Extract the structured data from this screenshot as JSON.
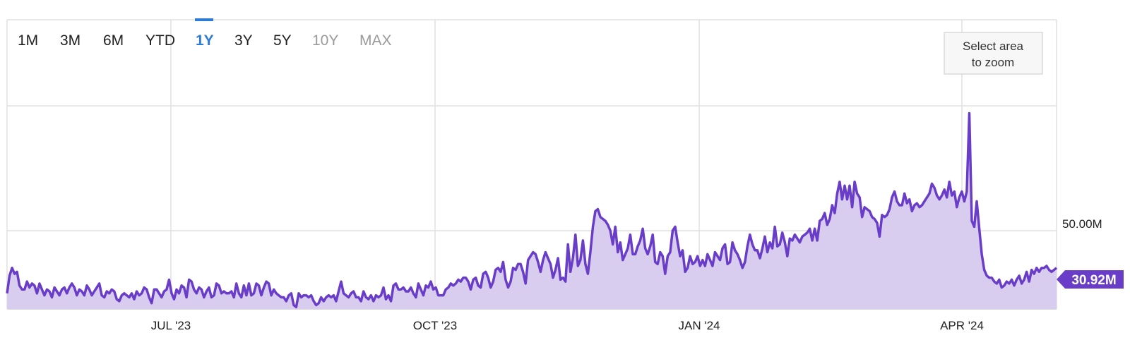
{
  "range_buttons": [
    {
      "label": "1M",
      "state": "normal"
    },
    {
      "label": "3M",
      "state": "normal"
    },
    {
      "label": "6M",
      "state": "normal"
    },
    {
      "label": "YTD",
      "state": "normal"
    },
    {
      "label": "1Y",
      "state": "active"
    },
    {
      "label": "3Y",
      "state": "normal"
    },
    {
      "label": "5Y",
      "state": "normal"
    },
    {
      "label": "10Y",
      "state": "disabled"
    },
    {
      "label": "MAX",
      "state": "disabled"
    }
  ],
  "zoom_hint": {
    "line1": "Select area",
    "line2": "to zoom"
  },
  "colors": {
    "line": "#6a3dc9",
    "area": "#d8cdef",
    "active": "#2e7bd6",
    "disabled": "#9a9a9a",
    "text": "#1f1f1f",
    "grid": "#e0e0e0",
    "badge": "#6a3dc9"
  },
  "chart_data": {
    "type": "area",
    "x_tick_labels": [
      "JUL '23",
      "OCT '23",
      "JAN '24",
      "APR '24"
    ],
    "y_tick_labels": [
      "50.00M"
    ],
    "last_value_label": "30.92M",
    "x_range": [
      "2023-05-09",
      "2024-05-08"
    ],
    "y_range_approx": [
      10,
      120
    ],
    "grid": true,
    "series": [
      {
        "values_millions": [
          18,
          27,
          31,
          28,
          29,
          22,
          20,
          20,
          24,
          21,
          23,
          22,
          18,
          23,
          20,
          17,
          20,
          19,
          16,
          21,
          19,
          17,
          20,
          21,
          18,
          21,
          23,
          21,
          17,
          20,
          19,
          17,
          22,
          20,
          17,
          19,
          21,
          23,
          17,
          16,
          19,
          18,
          20,
          19,
          15,
          14,
          17,
          18,
          17,
          16,
          18,
          15,
          19,
          17,
          18,
          21,
          20,
          16,
          13,
          20,
          20,
          18,
          16,
          19,
          20,
          25,
          18,
          15,
          20,
          18,
          22,
          21,
          16,
          25,
          24,
          20,
          18,
          21,
          20,
          16,
          19,
          21,
          16,
          17,
          23,
          22,
          18,
          19,
          18,
          18,
          19,
          16,
          23,
          18,
          16,
          22,
          17,
          23,
          17,
          18,
          23,
          22,
          17,
          21,
          24,
          23,
          17,
          20,
          18,
          17,
          16,
          16,
          14,
          17,
          18,
          12,
          11,
          18,
          16,
          17,
          17,
          16,
          17,
          14,
          12,
          13,
          16,
          14,
          16,
          17,
          16,
          17,
          14,
          19,
          24,
          18,
          17,
          16,
          18,
          19,
          16,
          16,
          14,
          19,
          16,
          15,
          17,
          14,
          17,
          16,
          17,
          21,
          15,
          17,
          14,
          22,
          23,
          20,
          20,
          21,
          19,
          19,
          21,
          18,
          16,
          23,
          20,
          17,
          22,
          21,
          24,
          20,
          21,
          17,
          17,
          17,
          20,
          21,
          23,
          22,
          23,
          25,
          24,
          26,
          26,
          24,
          20,
          25,
          26,
          22,
          21,
          28,
          29,
          26,
          21,
          24,
          30,
          31,
          29,
          34,
          25,
          21,
          24,
          31,
          30,
          33,
          33,
          29,
          23,
          35,
          37,
          39,
          38,
          34,
          29,
          35,
          39,
          36,
          33,
          26,
          30,
          36,
          25,
          26,
          24,
          43,
          29,
          36,
          48,
          32,
          35,
          45,
          33,
          28,
          39,
          52,
          60,
          61,
          57,
          56,
          55,
          53,
          50,
          43,
          52,
          39,
          44,
          35,
          38,
          41,
          48,
          38,
          38,
          42,
          45,
          51,
          41,
          38,
          42,
          48,
          34,
          33,
          39,
          37,
          28,
          37,
          39,
          50,
          52,
          44,
          37,
          40,
          29,
          31,
          37,
          33,
          34,
          37,
          32,
          35,
          32,
          38,
          35,
          32,
          39,
          37,
          35,
          41,
          43,
          33,
          34,
          44,
          40,
          38,
          35,
          31,
          34,
          42,
          48,
          43,
          40,
          40,
          36,
          41,
          47,
          39,
          44,
          41,
          52,
          42,
          43,
          49,
          44,
          37,
          46,
          45,
          48,
          46,
          44,
          47,
          48,
          49,
          51,
          45,
          51,
          45,
          55,
          56,
          59,
          53,
          56,
          63,
          59,
          69,
          75,
          66,
          73,
          66,
          73,
          62,
          75,
          69,
          67,
          57,
          62,
          61,
          60,
          57,
          56,
          54,
          47,
          58,
          57,
          58,
          61,
          67,
          70,
          65,
          63,
          63,
          69,
          64,
          66,
          60,
          63,
          64,
          62,
          63,
          65,
          67,
          69,
          74,
          72,
          68,
          66,
          68,
          71,
          67,
          75,
          68,
          70,
          62,
          67,
          70,
          65,
          70,
          110,
          55,
          52,
          65,
          51,
          38,
          30,
          27,
          26,
          26,
          24,
          23,
          25,
          21,
          22,
          24,
          23,
          25,
          22,
          25,
          27,
          23,
          25,
          29,
          24,
          30,
          28,
          31,
          29,
          31,
          31,
          32,
          30,
          29,
          30,
          31
        ]
      }
    ]
  }
}
